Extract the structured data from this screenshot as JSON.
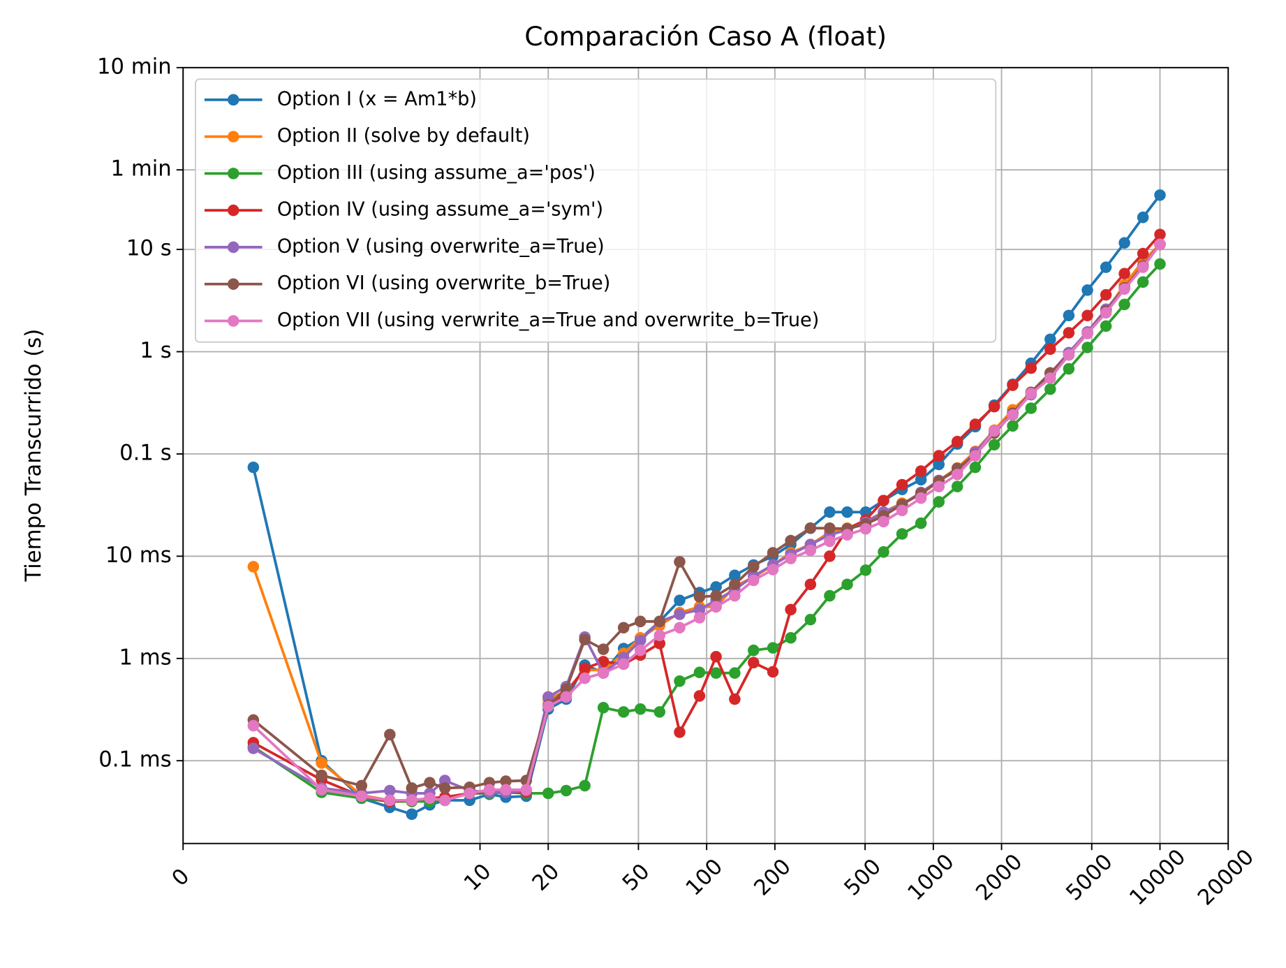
{
  "chart_data": {
    "type": "line",
    "title": "Comparación Caso A (float)",
    "ylabel": "Tiempo Transcurrido (s)",
    "xscale": "symlog",
    "yscale": "log",
    "grid": true,
    "legend": "upper left",
    "xlim": [
      0,
      20000
    ],
    "xticks": [
      0,
      10,
      20,
      50,
      100,
      200,
      500,
      1000,
      2000,
      5000,
      10000,
      20000
    ],
    "ylim": [
      1.55e-05,
      600
    ],
    "yticks": [
      {
        "value": 600,
        "label": "10 min"
      },
      {
        "value": 60,
        "label": "1 min"
      },
      {
        "value": 10,
        "label": "10 s"
      },
      {
        "value": 1,
        "label": "1 s"
      },
      {
        "value": 0.1,
        "label": "0.1 s"
      },
      {
        "value": 0.01,
        "label": "10 ms"
      },
      {
        "value": 0.001,
        "label": "1 ms"
      },
      {
        "value": 0.0001,
        "label": "0.1 ms"
      }
    ],
    "x": [
      1,
      2,
      3,
      4,
      5,
      6,
      7,
      9,
      11,
      13,
      16,
      20,
      24,
      29,
      35,
      43,
      51,
      62,
      76,
      93,
      110,
      133,
      161,
      196,
      235,
      287,
      349,
      417,
      503,
      603,
      728,
      882,
      1058,
      1276,
      1532,
      1858,
      2240,
      2698,
      3280,
      3960,
      4785,
      5777,
      6970,
      8414,
      10000
    ],
    "series": [
      {
        "name": "Option I (x = Am1*b)",
        "color": "#1f77b4",
        "values": [
          0.074,
          0.0001,
          4.3e-05,
          3.5e-05,
          3e-05,
          3.7e-05,
          4.1e-05,
          4.1e-05,
          4.7e-05,
          4.4e-05,
          4.5e-05,
          0.00032,
          0.0004,
          0.00086,
          0.00073,
          0.00125,
          0.00156,
          0.0023,
          0.0037,
          0.0044,
          0.005,
          0.0065,
          0.0082,
          0.01,
          0.013,
          0.0188,
          0.027,
          0.027,
          0.027,
          0.035,
          0.045,
          0.056,
          0.079,
          0.125,
          0.185,
          0.3,
          0.48,
          0.77,
          1.32,
          2.26,
          4.0,
          6.7,
          11.6,
          20.6,
          34
        ]
      },
      {
        "name": "Option II (solve by default)",
        "color": "#ff7f0e",
        "values": [
          0.0079,
          9.5e-05,
          4.6e-05,
          4.1e-05,
          4e-05,
          4.1e-05,
          4.3e-05,
          4.8e-05,
          5.1e-05,
          5.1e-05,
          5.1e-05,
          0.0004,
          0.00048,
          0.00077,
          0.00077,
          0.00112,
          0.00159,
          0.0021,
          0.0028,
          0.0032,
          0.0032,
          0.0051,
          0.0062,
          0.0082,
          0.0108,
          0.013,
          0.0171,
          0.0188,
          0.0218,
          0.027,
          0.033,
          0.04,
          0.055,
          0.073,
          0.106,
          0.171,
          0.27,
          0.4,
          0.62,
          0.93,
          1.51,
          2.5,
          4.5,
          7.7,
          11.2
        ]
      },
      {
        "name": "Option III (using assume_a='pos')",
        "color": "#2ca02c",
        "values": [
          0.000137,
          4.9e-05,
          4.3e-05,
          4e-05,
          4e-05,
          4e-05,
          4.1e-05,
          4.8e-05,
          4.8e-05,
          4.9e-05,
          4.8e-05,
          4.8e-05,
          5.1e-05,
          5.7e-05,
          0.00033,
          0.0003,
          0.00032,
          0.0003,
          0.0006,
          0.00073,
          0.00072,
          0.00072,
          0.0012,
          0.00127,
          0.00159,
          0.0024,
          0.0041,
          0.0053,
          0.0073,
          0.011,
          0.0165,
          0.021,
          0.034,
          0.048,
          0.074,
          0.123,
          0.188,
          0.28,
          0.43,
          0.68,
          1.1,
          1.78,
          2.9,
          4.8,
          7.2
        ]
      },
      {
        "name": "Option IV (using assume_a='sym')",
        "color": "#d62728",
        "values": [
          0.00015,
          6.5e-05,
          4.5e-05,
          4e-05,
          4.1e-05,
          4.3e-05,
          4.4e-05,
          4.8e-05,
          4.9e-05,
          4.9e-05,
          4.9e-05,
          0.00035,
          0.00046,
          0.0008,
          0.00093,
          0.00088,
          0.00108,
          0.0014,
          0.00019,
          0.00043,
          0.00104,
          0.0004,
          0.00091,
          0.00074,
          0.003,
          0.0053,
          0.01,
          0.0185,
          0.0226,
          0.035,
          0.05,
          0.068,
          0.096,
          0.132,
          0.195,
          0.29,
          0.47,
          0.69,
          1.06,
          1.53,
          2.26,
          3.6,
          5.8,
          9.1,
          14.0
        ]
      },
      {
        "name": "Option V (using overwrite_a=True)",
        "color": "#9467bd",
        "values": [
          0.000132,
          5.4e-05,
          4.8e-05,
          5.1e-05,
          4.8e-05,
          4.8e-05,
          6.4e-05,
          5.1e-05,
          4.9e-05,
          4.9e-05,
          5.1e-05,
          0.00042,
          0.00053,
          0.00162,
          0.00072,
          0.00102,
          0.0015,
          0.0023,
          0.0027,
          0.003,
          0.0037,
          0.0047,
          0.0064,
          0.0082,
          0.0104,
          0.013,
          0.0162,
          0.018,
          0.0214,
          0.027,
          0.032,
          0.042,
          0.055,
          0.069,
          0.104,
          0.168,
          0.25,
          0.38,
          0.61,
          0.98,
          1.56,
          2.6,
          4.2,
          6.9,
          11.2
        ]
      },
      {
        "name": "Option VI (using overwrite_b=True)",
        "color": "#8c564b",
        "values": [
          0.00025,
          7.2e-05,
          5.7e-05,
          0.00018,
          5.4e-05,
          6.1e-05,
          5.4e-05,
          5.5e-05,
          6.1e-05,
          6.3e-05,
          6.4e-05,
          0.00035,
          0.0005,
          0.00153,
          0.00123,
          0.002,
          0.0023,
          0.0023,
          0.0088,
          0.004,
          0.0041,
          0.0053,
          0.0079,
          0.0108,
          0.0142,
          0.0188,
          0.0188,
          0.0185,
          0.0206,
          0.0248,
          0.032,
          0.041,
          0.054,
          0.072,
          0.098,
          0.16,
          0.25,
          0.4,
          0.62,
          0.93,
          1.51,
          2.5,
          4.2,
          6.9,
          11.2
        ]
      },
      {
        "name": "Option VII (using verwrite_a=True and overwrite_b=True)",
        "color": "#e377c2",
        "values": [
          0.00022,
          5.2e-05,
          4.5e-05,
          4.1e-05,
          4.1e-05,
          4.3e-05,
          4.1e-05,
          4.8e-05,
          5.2e-05,
          5.2e-05,
          5.2e-05,
          0.00034,
          0.00042,
          0.00064,
          0.00072,
          0.00088,
          0.0012,
          0.00168,
          0.002,
          0.0025,
          0.0032,
          0.0041,
          0.0058,
          0.0074,
          0.0095,
          0.0114,
          0.014,
          0.0162,
          0.0185,
          0.0218,
          0.028,
          0.037,
          0.048,
          0.063,
          0.096,
          0.168,
          0.24,
          0.39,
          0.55,
          0.93,
          1.51,
          2.4,
          4.1,
          6.7,
          11.2
        ]
      }
    ]
  }
}
